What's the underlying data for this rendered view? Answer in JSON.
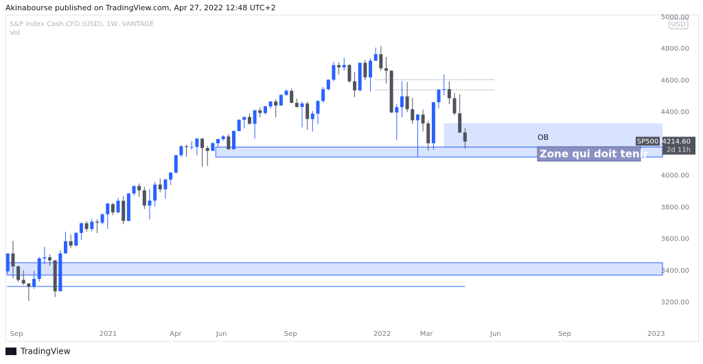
{
  "chart_data": {
    "type": "candlestick",
    "title": "Akinabourse published on TradingView.com, Apr 27, 2022 12:48 UTC+2",
    "subtitle": "S&P Index Cash CFD (USD), 1W, VANTAGE",
    "indicator": "Vol",
    "currency": "USD",
    "brand": "TradingView",
    "up_color": "#2962ff",
    "down_color": "#50535e",
    "grid": false,
    "xlim": [
      "2020-08-21",
      "2023-01-13"
    ],
    "ylim": [
      3040,
      5013
    ],
    "yticks": [
      {
        "value": 3200,
        "label": "3200.00"
      },
      {
        "value": 3400,
        "label": "3400.00"
      },
      {
        "value": 3600,
        "label": "3600.00"
      },
      {
        "value": 3800,
        "label": "3800.00"
      },
      {
        "value": 4000,
        "label": "4000.00"
      },
      {
        "value": 4200,
        "label": "4200.00"
      },
      {
        "value": 4400,
        "label": "4400.00"
      },
      {
        "value": 4600,
        "label": "4600.00"
      },
      {
        "value": 4800,
        "label": "4800.00"
      },
      {
        "value": 5000,
        "label": "5000.00"
      }
    ],
    "xticks": [
      {
        "value": "2020-09-01",
        "label": "Sep"
      },
      {
        "value": "2021-01-01",
        "label": "2021"
      },
      {
        "value": "2021-04-01",
        "label": "Apr"
      },
      {
        "value": "2021-06-01",
        "label": "Jun"
      },
      {
        "value": "2021-09-01",
        "label": "Sep"
      },
      {
        "value": "2022-01-01",
        "label": "2022"
      },
      {
        "value": "2022-03-01",
        "label": "Mar"
      },
      {
        "value": "2022-06-01",
        "label": "Jun"
      },
      {
        "value": "2022-09-01",
        "label": "Sep"
      },
      {
        "value": "2023-01-01",
        "label": "2023"
      }
    ],
    "x": [
      "2020-08-24",
      "2020-08-31",
      "2020-09-07",
      "2020-09-14",
      "2020-09-21",
      "2020-09-28",
      "2020-10-05",
      "2020-10-12",
      "2020-10-19",
      "2020-10-26",
      "2020-11-02",
      "2020-11-09",
      "2020-11-16",
      "2020-11-23",
      "2020-11-30",
      "2020-12-07",
      "2020-12-14",
      "2020-12-21",
      "2020-12-28",
      "2021-01-04",
      "2021-01-11",
      "2021-01-18",
      "2021-01-25",
      "2021-02-01",
      "2021-02-08",
      "2021-02-15",
      "2021-02-22",
      "2021-03-01",
      "2021-03-08",
      "2021-03-15",
      "2021-03-22",
      "2021-03-29",
      "2021-04-05",
      "2021-04-12",
      "2021-04-19",
      "2021-04-26",
      "2021-05-03",
      "2021-05-10",
      "2021-05-17",
      "2021-05-24",
      "2021-05-31",
      "2021-06-07",
      "2021-06-14",
      "2021-06-21",
      "2021-06-28",
      "2021-07-05",
      "2021-07-12",
      "2021-07-19",
      "2021-07-26",
      "2021-08-02",
      "2021-08-09",
      "2021-08-16",
      "2021-08-23",
      "2021-08-30",
      "2021-09-06",
      "2021-09-13",
      "2021-09-20",
      "2021-09-27",
      "2021-10-04",
      "2021-10-11",
      "2021-10-18",
      "2021-10-25",
      "2021-11-01",
      "2021-11-08",
      "2021-11-15",
      "2021-11-22",
      "2021-11-29",
      "2021-12-06",
      "2021-12-13",
      "2021-12-20",
      "2021-12-27",
      "2022-01-03",
      "2022-01-10",
      "2022-01-17",
      "2022-01-24",
      "2022-01-31",
      "2022-02-07",
      "2022-02-14",
      "2022-02-21",
      "2022-02-28",
      "2022-03-07",
      "2022-03-14",
      "2022-03-21",
      "2022-03-28",
      "2022-04-04",
      "2022-04-11",
      "2022-04-18",
      "2022-04-25"
    ],
    "open": [
      3397,
      3508,
      3427,
      3341,
      3319,
      3298,
      3348,
      3477,
      3484,
      3465,
      3270,
      3509,
      3585,
      3558,
      3638,
      3699,
      3663,
      3709,
      3703,
      3756,
      3820,
      3768,
      3841,
      3714,
      3887,
      3934,
      3907,
      3811,
      3842,
      3943,
      3913,
      3975,
      4019,
      4129,
      4185,
      4180,
      4181,
      4233,
      4174,
      4156,
      4204,
      4230,
      4247,
      4166,
      4281,
      4352,
      4370,
      4327,
      4412,
      4395,
      4437,
      4468,
      4442,
      4509,
      4535,
      4459,
      4433,
      4455,
      4357,
      4391,
      4471,
      4545,
      4605,
      4697,
      4683,
      4698,
      4595,
      4538,
      4712,
      4620,
      4725,
      4766,
      4677,
      4662,
      4398,
      4432,
      4500,
      4419,
      4349,
      4385,
      4329,
      4204,
      4463,
      4543,
      4546,
      4488,
      4393,
      4272
    ],
    "high": [
      3509,
      3588,
      3429,
      3402,
      3320,
      3398,
      3486,
      3550,
      3502,
      3466,
      3529,
      3646,
      3628,
      3644,
      3705,
      3712,
      3726,
      3723,
      3760,
      3826,
      3828,
      3860,
      3870,
      3889,
      3937,
      3950,
      3929,
      3915,
      3960,
      3983,
      3979,
      4021,
      4129,
      4191,
      4195,
      4218,
      4238,
      4237,
      4188,
      4213,
      4234,
      4255,
      4262,
      4287,
      4356,
      4372,
      4393,
      4415,
      4430,
      4440,
      4468,
      4481,
      4513,
      4545,
      4549,
      4486,
      4466,
      4466,
      4407,
      4475,
      4559,
      4608,
      4718,
      4715,
      4743,
      4705,
      4652,
      4713,
      4731,
      4740,
      4808,
      4818,
      4749,
      4665,
      4453,
      4595,
      4590,
      4490,
      4389,
      4416,
      4345,
      4465,
      4546,
      4637,
      4594,
      4521,
      4513,
      4300
    ],
    "low": [
      3387,
      3350,
      3330,
      3310,
      3209,
      3285,
      3330,
      3441,
      3430,
      3233,
      3268,
      3508,
      3543,
      3555,
      3594,
      3645,
      3648,
      3636,
      3692,
      3663,
      3750,
      3763,
      3694,
      3712,
      3872,
      3866,
      3789,
      3723,
      3805,
      3894,
      3853,
      3940,
      4013,
      4118,
      4118,
      4164,
      4127,
      4056,
      4061,
      4155,
      4183,
      4219,
      4165,
      4165,
      4280,
      4299,
      4322,
      4233,
      4367,
      4385,
      4423,
      4368,
      4442,
      4505,
      4456,
      4429,
      4305,
      4289,
      4278,
      4323,
      4460,
      4537,
      4595,
      4638,
      4664,
      4585,
      4495,
      4532,
      4601,
      4531,
      4724,
      4662,
      4582,
      4395,
      4222,
      4368,
      4401,
      4327,
      4115,
      4279,
      4158,
      4162,
      4424,
      4507,
      4450,
      4381,
      4268,
      4170
    ],
    "close": [
      3508,
      3427,
      3341,
      3319,
      3298,
      3348,
      3477,
      3484,
      3465,
      3270,
      3509,
      3585,
      3558,
      3638,
      3699,
      3663,
      3709,
      3703,
      3756,
      3824,
      3768,
      3841,
      3714,
      3887,
      3934,
      3907,
      3811,
      3842,
      3943,
      3913,
      3975,
      4019,
      4129,
      4185,
      4180,
      4181,
      4233,
      4174,
      4156,
      4204,
      4230,
      4247,
      4166,
      4281,
      4352,
      4370,
      4327,
      4412,
      4395,
      4437,
      4468,
      4442,
      4509,
      4535,
      4459,
      4433,
      4455,
      4357,
      4391,
      4471,
      4545,
      4605,
      4697,
      4683,
      4698,
      4595,
      4538,
      4712,
      4620,
      4725,
      4766,
      4677,
      4662,
      4398,
      4432,
      4500,
      4419,
      4349,
      4385,
      4329,
      4204,
      4463,
      4543,
      4546,
      4488,
      4393,
      4272,
      4214.6
    ],
    "last_price": {
      "name": "SP500",
      "value": 4214.6,
      "label": "4214.60",
      "countdown": "2d 11h"
    },
    "zones": [
      {
        "start": "2022-03-28",
        "end": "2023-01-13",
        "low": 4180,
        "high": 4330,
        "label": "OB"
      },
      {
        "start": "2021-05-28",
        "end": "2023-01-13",
        "low": 4117,
        "high": 4180,
        "label": "Zone qui doit tenir"
      },
      {
        "start": "2020-08-23",
        "end": "2023-01-13",
        "low": 3372,
        "high": 3450
      }
    ],
    "lines": [
      {
        "start": "2020-08-23",
        "end": "2022-04-25",
        "value": 3300,
        "style": "solid"
      },
      {
        "start": "2021-12-27",
        "end": "2022-06-03",
        "value": 4606,
        "style": "dotted"
      },
      {
        "start": "2021-12-27",
        "end": "2022-06-03",
        "value": 4541,
        "style": "dotted"
      }
    ]
  }
}
